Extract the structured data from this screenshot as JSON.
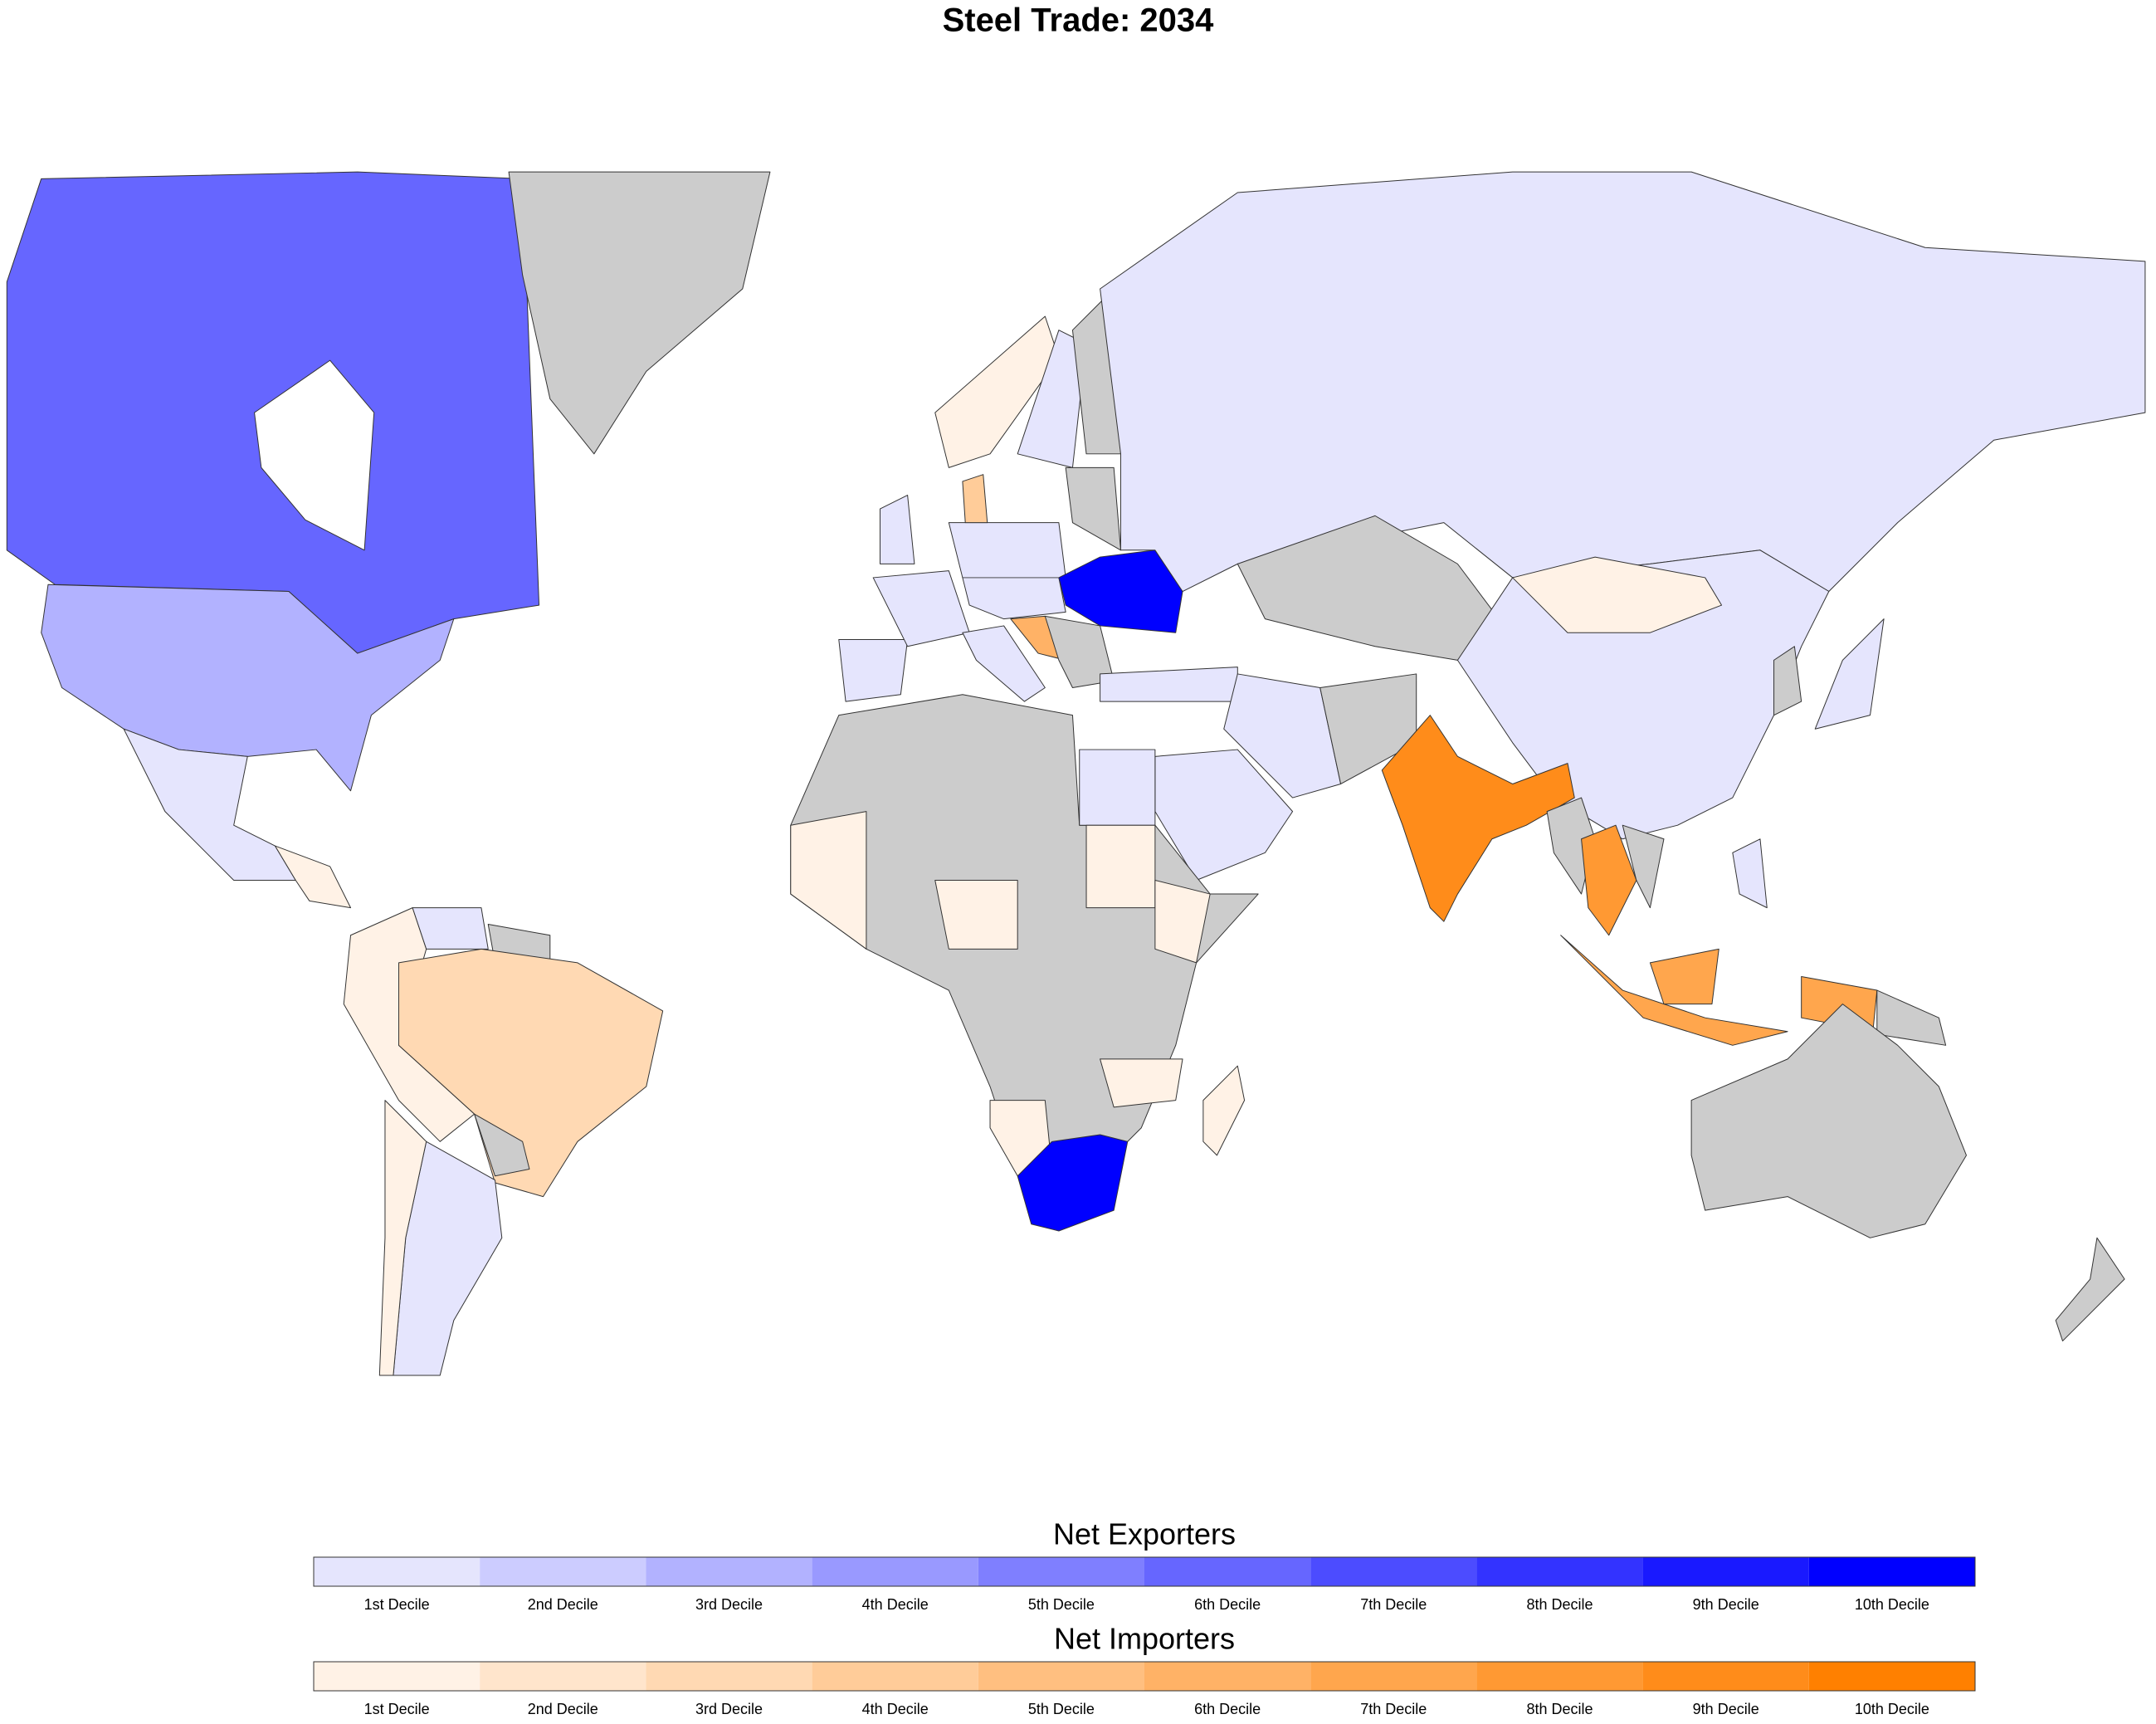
{
  "title": "Steel Trade: 2034",
  "legends": [
    {
      "title": "Net Exporters",
      "labels": [
        "1st Decile",
        "2nd Decile",
        "3rd Decile",
        "4th Decile",
        "5th Decile",
        "6th Decile",
        "7th Decile",
        "8th Decile",
        "9th Decile",
        "10th Decile"
      ],
      "colors": [
        "#e5e5fd",
        "#ccccff",
        "#b2b2ff",
        "#9999ff",
        "#7f7fff",
        "#6666ff",
        "#4c4cff",
        "#3333ff",
        "#1919ff",
        "#0000ff"
      ]
    },
    {
      "title": "Net Importers",
      "labels": [
        "1st Decile",
        "2nd Decile",
        "3rd Decile",
        "4th Decile",
        "5th Decile",
        "6th Decile",
        "7th Decile",
        "8th Decile",
        "9th Decile",
        "10th Decile"
      ],
      "colors": [
        "#fff2e6",
        "#ffe5cc",
        "#ffd9b3",
        "#ffcc99",
        "#ffbf80",
        "#ffb266",
        "#ffa64d",
        "#ff9933",
        "#ff8c1a",
        "#ff8000"
      ]
    }
  ]
}
